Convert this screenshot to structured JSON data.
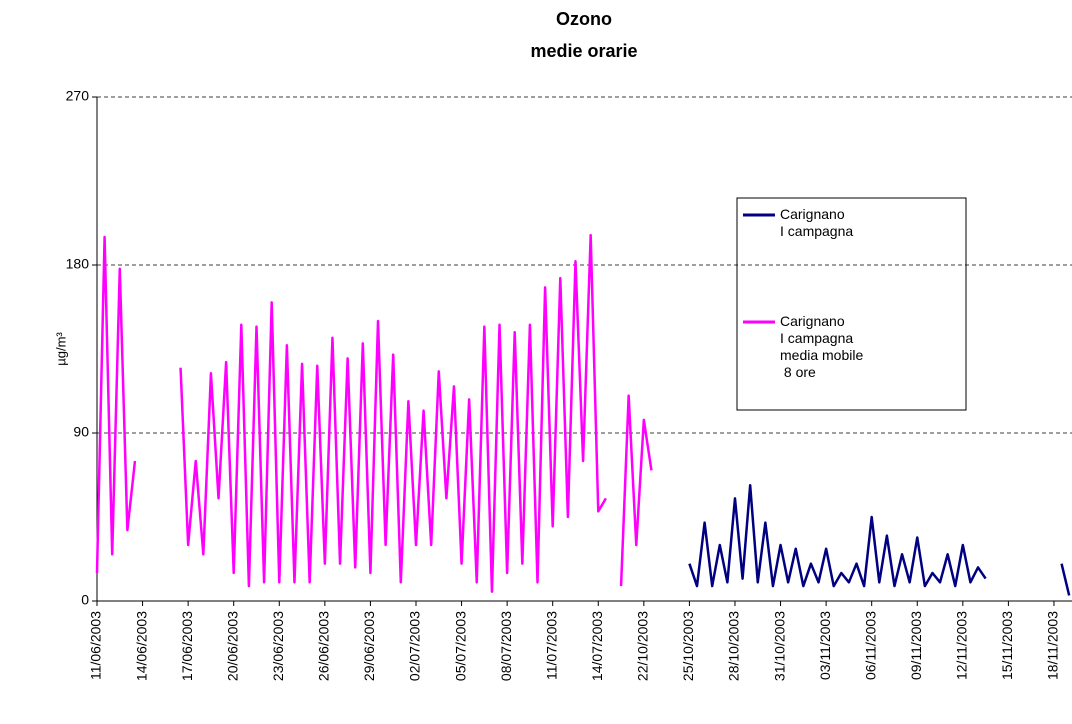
{
  "chart_data": {
    "type": "line",
    "title": "Ozono",
    "subtitle": "medie orarie",
    "y_label": "µg/m³",
    "categories": [
      "11/06/2003",
      null,
      null,
      null,
      null,
      null,
      "14/06/2003",
      null,
      null,
      null,
      null,
      null,
      "17/06/2003",
      null,
      null,
      null,
      null,
      null,
      "20/06/2003",
      null,
      null,
      null,
      null,
      null,
      "23/06/2003",
      null,
      null,
      null,
      null,
      null,
      "26/06/2003",
      null,
      null,
      null,
      null,
      null,
      "29/06/2003",
      null,
      null,
      null,
      null,
      null,
      "02/07/2003",
      null,
      null,
      null,
      null,
      null,
      "05/07/2003",
      null,
      null,
      null,
      null,
      null,
      "08/07/2003",
      null,
      null,
      null,
      null,
      null,
      "11/07/2003",
      null,
      null,
      null,
      null,
      null,
      "14/07/2003",
      null,
      null,
      null,
      null,
      null,
      "22/10/2003",
      null,
      null,
      null,
      null,
      null,
      "25/10/2003",
      null,
      null,
      null,
      null,
      null,
      "28/10/2003",
      null,
      null,
      null,
      null,
      null,
      "31/10/2003",
      null,
      null,
      null,
      null,
      null,
      "03/11/2003",
      null,
      null,
      null,
      null,
      null,
      "06/11/2003",
      null,
      null,
      null,
      null,
      null,
      "09/11/2003",
      null,
      null,
      null,
      null,
      null,
      "12/11/2003",
      null,
      null,
      null,
      null,
      null,
      "15/11/2003",
      null,
      null,
      null,
      null,
      null,
      "18/11/2003",
      null,
      null
    ],
    "series": [
      {
        "name": "Carignano\nI campagna",
        "color": "#000080",
        "values": [
          null,
          null,
          null,
          null,
          null,
          null,
          null,
          null,
          null,
          null,
          null,
          null,
          null,
          null,
          null,
          null,
          null,
          null,
          null,
          null,
          null,
          null,
          null,
          null,
          null,
          null,
          null,
          null,
          null,
          null,
          null,
          null,
          null,
          null,
          null,
          null,
          null,
          null,
          null,
          null,
          null,
          null,
          null,
          null,
          null,
          null,
          null,
          null,
          null,
          null,
          null,
          null,
          null,
          null,
          null,
          null,
          null,
          null,
          null,
          null,
          null,
          null,
          null,
          null,
          null,
          null,
          null,
          null,
          null,
          null,
          null,
          null,
          null,
          null,
          null,
          null,
          null,
          null,
          20,
          8,
          42,
          8,
          30,
          10,
          55,
          12,
          62,
          10,
          42,
          8,
          30,
          10,
          28,
          8,
          20,
          10,
          28,
          8,
          15,
          10,
          20,
          8,
          45,
          10,
          35,
          8,
          25,
          10,
          34,
          8,
          15,
          10,
          25,
          8,
          30,
          10,
          18,
          12,
          null,
          null,
          null,
          null,
          null,
          null,
          null,
          null,
          null,
          20,
          3
        ]
      },
      {
        "name": "Carignano\nI campagna\nmedia mobile\n 8 ore",
        "color": "#ff00ff",
        "values": [
          15,
          195,
          25,
          178,
          38,
          75,
          null,
          null,
          null,
          null,
          null,
          125,
          30,
          75,
          25,
          122,
          55,
          128,
          15,
          148,
          8,
          147,
          10,
          160,
          10,
          137,
          10,
          127,
          10,
          126,
          20,
          141,
          20,
          130,
          18,
          138,
          15,
          150,
          30,
          132,
          10,
          107,
          30,
          102,
          30,
          123,
          55,
          115,
          20,
          108,
          10,
          147,
          5,
          148,
          15,
          144,
          20,
          148,
          10,
          168,
          40,
          173,
          45,
          182,
          75,
          196,
          48,
          55,
          null,
          8,
          110,
          30,
          97,
          70,
          null,
          null,
          null,
          null,
          null,
          null,
          null,
          null,
          null,
          null,
          null,
          null,
          null,
          null,
          null,
          null,
          null,
          null,
          null,
          null,
          null,
          null,
          null,
          null,
          null,
          null,
          null,
          null,
          null,
          null,
          null,
          null,
          null,
          null,
          null,
          null,
          null,
          null,
          null,
          null,
          null,
          null,
          null,
          null,
          null,
          null,
          null,
          null,
          null,
          null,
          null,
          null,
          null,
          null,
          null
        ]
      }
    ],
    "ylim": [
      0,
      270
    ],
    "yticks": [
      0,
      90,
      180,
      270
    ],
    "grid": true
  }
}
